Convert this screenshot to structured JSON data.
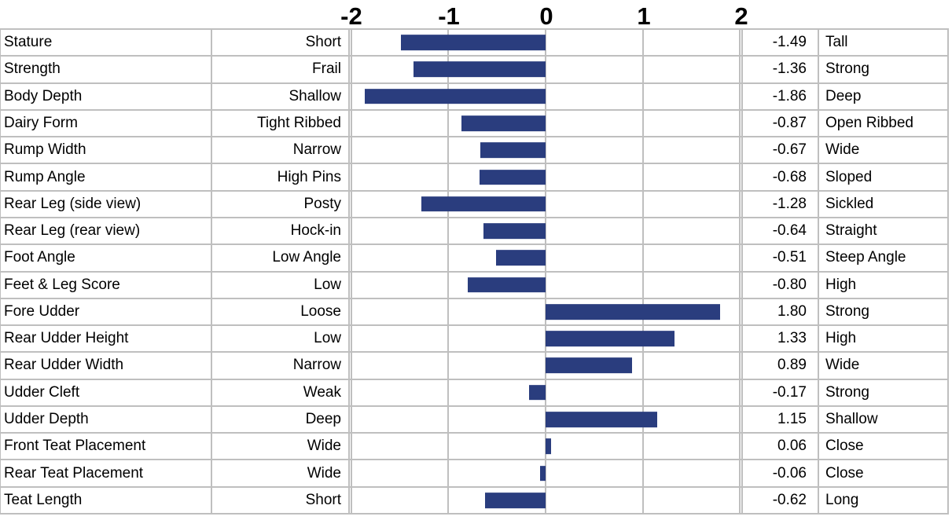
{
  "chart_data": {
    "type": "bar",
    "orientation": "horizontal",
    "title": "",
    "xlabel": "",
    "ylabel": "",
    "xlim": [
      -2.016,
      2.016
    ],
    "axis_ticks": [
      -2,
      -1,
      0,
      1,
      2
    ],
    "grid": true,
    "legend": "none",
    "bar_color": "#2A3D7E",
    "grid_color": "#BFBFBF",
    "rows": [
      {
        "trait": "Stature",
        "low": "Short",
        "value": -1.49,
        "high": "Tall"
      },
      {
        "trait": "Strength",
        "low": "Frail",
        "value": -1.36,
        "high": "Strong"
      },
      {
        "trait": "Body Depth",
        "low": "Shallow",
        "value": -1.86,
        "high": "Deep"
      },
      {
        "trait": "Dairy Form",
        "low": "Tight Ribbed",
        "value": -0.87,
        "high": "Open Ribbed"
      },
      {
        "trait": "Rump Width",
        "low": "Narrow",
        "value": -0.67,
        "high": "Wide"
      },
      {
        "trait": "Rump Angle",
        "low": "High Pins",
        "value": -0.68,
        "high": "Sloped"
      },
      {
        "trait": "Rear Leg (side view)",
        "low": "Posty",
        "value": -1.28,
        "high": "Sickled"
      },
      {
        "trait": "Rear Leg (rear view)",
        "low": "Hock-in",
        "value": -0.64,
        "high": "Straight"
      },
      {
        "trait": "Foot Angle",
        "low": "Low Angle",
        "value": -0.51,
        "high": "Steep Angle"
      },
      {
        "trait": "Feet & Leg Score",
        "low": "Low",
        "value": -0.8,
        "high": "High"
      },
      {
        "trait": "Fore Udder",
        "low": "Loose",
        "value": 1.8,
        "high": "Strong"
      },
      {
        "trait": "Rear Udder Height",
        "low": "Low",
        "value": 1.33,
        "high": "High"
      },
      {
        "trait": "Rear Udder Width",
        "low": "Narrow",
        "value": 0.89,
        "high": "Wide"
      },
      {
        "trait": "Udder Cleft",
        "low": "Weak",
        "value": -0.17,
        "high": "Strong"
      },
      {
        "trait": "Udder Depth",
        "low": "Deep",
        "value": 1.15,
        "high": "Shallow"
      },
      {
        "trait": "Front Teat Placement",
        "low": "Wide",
        "value": 0.06,
        "high": "Close"
      },
      {
        "trait": "Rear Teat Placement",
        "low": "Wide",
        "value": -0.06,
        "high": "Close"
      },
      {
        "trait": "Teat Length",
        "low": "Short",
        "value": -0.62,
        "high": "Long"
      }
    ]
  }
}
